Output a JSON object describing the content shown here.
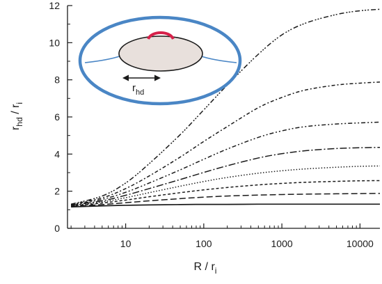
{
  "chart_data": {
    "type": "line",
    "title": "",
    "xlabel": {
      "main": "R / r",
      "sub": "i"
    },
    "ylabel": {
      "main": "r",
      "sub1": "hd",
      "mid": " / r",
      "sub2": "i"
    },
    "xscale": "log",
    "xlim": [
      1.8,
      18000
    ],
    "ylim": [
      0,
      12
    ],
    "xticks": [
      10,
      100,
      1000,
      10000
    ],
    "xtick_labels": [
      "10",
      "100",
      "1000",
      "10000"
    ],
    "yticks": [
      0,
      2,
      4,
      6,
      8,
      10,
      12
    ],
    "ytick_labels": [
      "0",
      "2",
      "4",
      "6",
      "8",
      "10",
      "12"
    ],
    "grid": false,
    "legend": "none",
    "inset": {
      "label_main": "r",
      "label_sub": "hd",
      "ring_color": "#4a86c5",
      "cap_color": "#d6214a",
      "drop_fill": "#e8e0dc"
    },
    "x": [
      2,
      5,
      10,
      20,
      50,
      100,
      200,
      500,
      1000,
      2000,
      5000,
      10000,
      18000
    ],
    "series": [
      {
        "dash": "solid",
        "values": [
          1.15,
          1.21,
          1.24,
          1.26,
          1.28,
          1.29,
          1.29,
          1.3,
          1.3,
          1.3,
          1.3,
          1.3,
          1.3
        ]
      },
      {
        "dash": "long-dash",
        "values": [
          1.18,
          1.28,
          1.38,
          1.48,
          1.6,
          1.68,
          1.74,
          1.79,
          1.82,
          1.84,
          1.86,
          1.87,
          1.88
        ]
      },
      {
        "dash": "short-dash",
        "values": [
          1.2,
          1.36,
          1.52,
          1.7,
          1.92,
          2.07,
          2.2,
          2.34,
          2.42,
          2.48,
          2.53,
          2.56,
          2.57
        ]
      },
      {
        "dash": "dot",
        "values": [
          1.22,
          1.42,
          1.65,
          1.92,
          2.27,
          2.52,
          2.74,
          2.97,
          3.1,
          3.2,
          3.29,
          3.34,
          3.36
        ]
      },
      {
        "dash": "long-dash-dot",
        "values": [
          1.24,
          1.48,
          1.78,
          2.14,
          2.63,
          3.01,
          3.37,
          3.79,
          4.02,
          4.18,
          4.3,
          4.34,
          4.36
        ]
      },
      {
        "dash": "dash-dot-dot",
        "values": [
          1.26,
          1.56,
          1.94,
          2.44,
          3.15,
          3.72,
          4.27,
          4.9,
          5.25,
          5.48,
          5.62,
          5.68,
          5.72
        ]
      },
      {
        "dash": "dash-dot",
        "values": [
          1.28,
          1.64,
          2.14,
          2.82,
          3.84,
          4.68,
          5.48,
          6.5,
          7.05,
          7.45,
          7.72,
          7.82,
          7.88
        ]
      },
      {
        "dash": "dash-dot-dot-dot",
        "values": [
          1.3,
          1.74,
          2.44,
          3.48,
          5.05,
          6.38,
          7.72,
          9.38,
          10.42,
          11.05,
          11.52,
          11.72,
          11.8
        ]
      }
    ]
  }
}
